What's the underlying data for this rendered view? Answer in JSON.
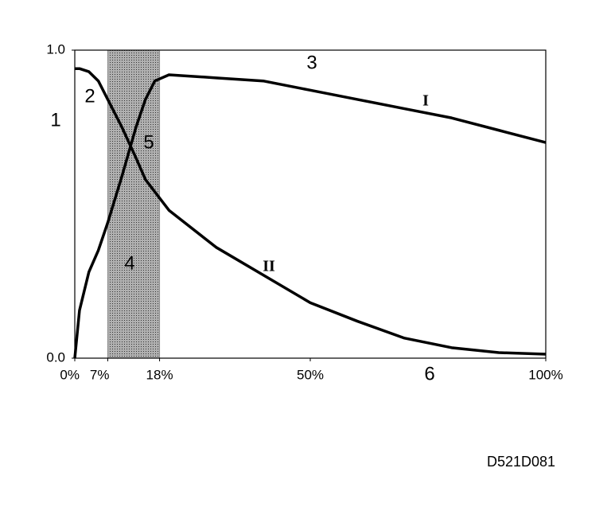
{
  "chart_data": {
    "type": "line",
    "x": [
      0,
      1,
      3,
      5,
      7,
      10,
      13,
      15,
      17,
      20,
      30,
      40,
      50,
      60,
      70,
      80,
      90,
      100
    ],
    "series": [
      {
        "name": "I",
        "color": "#000000",
        "values": [
          0,
          0.155,
          0.28,
          0.35,
          0.44,
          0.59,
          0.75,
          0.84,
          0.9,
          0.92,
          0.91,
          0.9,
          0.87,
          0.84,
          0.81,
          0.78,
          0.74,
          0.7
        ]
      },
      {
        "name": "II",
        "color": "#000000",
        "values": [
          0.94,
          0.94,
          0.93,
          0.9,
          0.84,
          0.75,
          0.65,
          0.58,
          0.54,
          0.48,
          0.36,
          0.27,
          0.18,
          0.12,
          0.065,
          0.034,
          0.018,
          0.013
        ]
      }
    ],
    "xlim": [
      0,
      100
    ],
    "xticks": [
      {
        "value": 0,
        "label": "0%"
      },
      {
        "value": 7,
        "label": "7%"
      },
      {
        "value": 18,
        "label": "18%"
      },
      {
        "value": 50,
        "label": "50%"
      },
      {
        "value": 100,
        "label": "100%"
      }
    ],
    "ylim": [
      0,
      1
    ],
    "yticks": [
      {
        "value": 0,
        "label": "0.0"
      },
      {
        "value": 1,
        "label": "1.0"
      }
    ],
    "band": [
      7,
      18
    ],
    "band_color": "#8c8c8c",
    "annotations": [
      "1",
      "2",
      "3",
      "4",
      "5",
      "6"
    ],
    "figure_id": "D521D081"
  }
}
